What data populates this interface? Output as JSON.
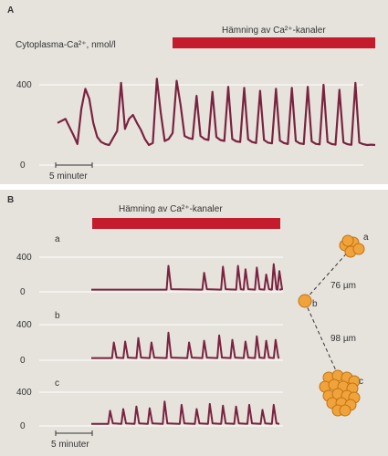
{
  "colors": {
    "panel_bg": "#e6e3dc",
    "trace": "#7a2340",
    "bar": "#c41c2c",
    "cell": "#f0a23b",
    "cell_stroke": "#c27412",
    "grid": "#ffffff"
  },
  "panel_a": {
    "label": "A",
    "ylabel": "Cytoplasma-Ca²⁺, nmol/l",
    "bar_label": "Hämning av Ca²⁺-kanaler",
    "yticks": [
      "0",
      "400"
    ],
    "scale_label": "5 minuter"
  },
  "panel_b": {
    "label": "B",
    "bar_label": "Hämning av Ca²⁺-kanaler",
    "scale_label": "5 minuter",
    "traces": [
      {
        "label": "a",
        "yticks": [
          "0",
          "400"
        ]
      },
      {
        "label": "b",
        "yticks": [
          "0",
          "400"
        ]
      },
      {
        "label": "c",
        "yticks": [
          "0",
          "400"
        ]
      }
    ],
    "cells": {
      "labels": [
        "a",
        "b",
        "c"
      ],
      "distances": [
        "76 µm",
        "98 µm"
      ]
    }
  },
  "chart_data": [
    {
      "type": "line",
      "ylabel": "Cytoplasma-Ca²⁺, nmol/l",
      "ylim": [
        0,
        500
      ],
      "x_unit_minutes": 5,
      "series": [
        {
          "x": [
            0.0,
            1.0,
            1.5,
            2.0,
            2.5,
            3.0,
            3.5,
            4.0,
            4.5,
            5.0,
            5.5,
            6.0,
            6.5,
            7.0,
            7.5,
            8.0,
            8.5,
            9.0,
            9.5,
            10.0,
            10.5,
            11.0,
            11.5,
            12.0,
            12.5,
            13.0,
            13.5,
            14.0,
            14.5,
            15.0,
            15.5,
            16.0,
            16.5,
            17.0,
            17.5,
            18.0,
            18.5,
            19.0,
            19.5,
            20.0,
            20.5,
            21.0,
            21.5,
            22.0,
            22.5,
            23.0,
            23.5,
            24.0,
            24.5,
            25.0,
            25.5,
            26.0,
            26.5,
            27.0,
            27.5,
            28.0,
            28.5,
            29.0,
            29.5,
            30.0,
            30.5,
            31.0,
            31.5,
            32.0,
            32.5,
            33.0,
            33.5,
            34.0,
            34.5,
            35.0,
            35.5,
            36.0,
            36.5,
            37.0,
            37.5,
            38.0,
            38.5,
            39.0,
            39.5,
            40.0
          ],
          "y": [
            210,
            230,
            190,
            150,
            105,
            280,
            380,
            330,
            210,
            140,
            115,
            105,
            100,
            135,
            170,
            410,
            180,
            230,
            250,
            210,
            175,
            130,
            100,
            110,
            430,
            260,
            120,
            130,
            160,
            420,
            300,
            145,
            135,
            130,
            345,
            145,
            130,
            125,
            365,
            140,
            125,
            120,
            390,
            130,
            118,
            115,
            385,
            128,
            115,
            110,
            370,
            125,
            112,
            108,
            380,
            122,
            110,
            105,
            385,
            120,
            108,
            105,
            390,
            118,
            106,
            103,
            400,
            115,
            105,
            102,
            375,
            113,
            104,
            101,
            410,
            112,
            104,
            100,
            102,
            100
          ]
        }
      ]
    },
    {
      "type": "line",
      "name": "a",
      "ylim": [
        0,
        500
      ],
      "inhibition_start": 0.4,
      "spikes": [
        [
          0.41,
          300
        ],
        [
          0.6,
          220
        ],
        [
          0.7,
          290
        ],
        [
          0.78,
          300
        ],
        [
          0.82,
          260
        ],
        [
          0.88,
          280
        ],
        [
          0.93,
          200
        ],
        [
          0.97,
          320
        ],
        [
          1.0,
          240
        ]
      ]
    },
    {
      "type": "line",
      "name": "b",
      "ylim": [
        0,
        500
      ],
      "inhibition_start": 0.4,
      "spikes": [
        [
          0.12,
          200
        ],
        [
          0.18,
          210
        ],
        [
          0.25,
          250
        ],
        [
          0.32,
          200
        ],
        [
          0.41,
          310
        ],
        [
          0.52,
          200
        ],
        [
          0.6,
          220
        ],
        [
          0.68,
          280
        ],
        [
          0.75,
          230
        ],
        [
          0.82,
          210
        ],
        [
          0.88,
          270
        ],
        [
          0.93,
          220
        ],
        [
          0.98,
          230
        ]
      ]
    },
    {
      "type": "line",
      "name": "c",
      "ylim": [
        0,
        500
      ],
      "inhibition_start": 0.4,
      "spikes": [
        [
          0.1,
          180
        ],
        [
          0.17,
          200
        ],
        [
          0.24,
          230
        ],
        [
          0.31,
          210
        ],
        [
          0.39,
          290
        ],
        [
          0.48,
          250
        ],
        [
          0.56,
          200
        ],
        [
          0.63,
          260
        ],
        [
          0.7,
          240
        ],
        [
          0.77,
          230
        ],
        [
          0.84,
          250
        ],
        [
          0.91,
          190
        ],
        [
          0.97,
          250
        ]
      ]
    }
  ]
}
